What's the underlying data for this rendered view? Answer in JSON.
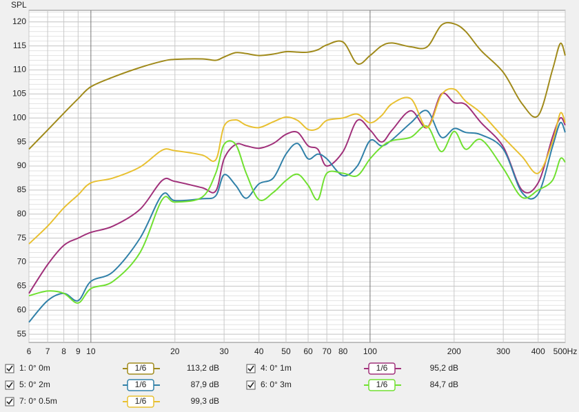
{
  "chart_data": {
    "type": "line",
    "y_label": "SPL",
    "xscale": "log",
    "grid": true,
    "xlim": [
      6,
      500
    ],
    "ylim": [
      53.3,
      122.4
    ],
    "xticks": [
      6,
      7,
      8,
      9,
      10,
      20,
      30,
      40,
      50,
      60,
      70,
      80,
      100,
      200,
      300,
      400,
      {
        "value": 500,
        "label": "500Hz"
      }
    ],
    "yticks": [
      55,
      60,
      65,
      70,
      75,
      80,
      85,
      90,
      95,
      100,
      105,
      110,
      115,
      120
    ],
    "x": [
      6,
      7,
      8,
      9,
      10,
      12,
      15,
      18,
      20,
      25,
      28,
      30,
      33,
      36,
      40,
      45,
      50,
      55,
      60,
      65,
      70,
      80,
      90,
      100,
      110,
      120,
      140,
      160,
      180,
      200,
      220,
      250,
      300,
      350,
      400,
      450,
      480,
      500
    ],
    "series": [
      {
        "name": "1: 0° 0m",
        "color": "#a08a1a",
        "smoothing": "1/6",
        "level": "113,2 dB",
        "values": [
          93.5,
          97.5,
          101,
          104,
          106.5,
          108.5,
          110.5,
          111.8,
          112.2,
          112.3,
          112,
          112.7,
          113.6,
          113.4,
          113,
          113.3,
          113.8,
          113.7,
          113.7,
          114.2,
          115.2,
          115.8,
          111.3,
          113,
          115,
          115.6,
          114.8,
          114.8,
          119.3,
          119.6,
          118,
          114,
          109.5,
          103,
          100.5,
          110,
          115.5,
          113
        ]
      },
      {
        "name": "4: 0° 1m",
        "color": "#a0307a",
        "smoothing": "1/6",
        "level": "95,2 dB",
        "values": [
          63.5,
          69.5,
          73.5,
          75,
          76.2,
          77.5,
          81,
          87,
          86.8,
          85.5,
          84.8,
          91.5,
          94.5,
          94.2,
          93.7,
          94.7,
          96.6,
          97,
          94.2,
          93.5,
          90,
          93,
          99.5,
          97.5,
          95,
          97.5,
          101.5,
          98,
          105,
          103.2,
          102.8,
          99,
          94,
          85,
          86.5,
          96,
          100,
          98.5
        ]
      },
      {
        "name": "5: 0° 2m",
        "color": "#3080a8",
        "smoothing": "1/6",
        "level": "87,9 dB",
        "values": [
          57.5,
          62,
          63.5,
          62,
          66,
          68,
          75,
          84,
          82.8,
          83.2,
          83.8,
          88.2,
          86,
          83.3,
          86.3,
          87.5,
          92.5,
          94.7,
          91.5,
          92.5,
          91.5,
          88,
          90,
          95.3,
          94.2,
          95.5,
          99,
          101.5,
          96,
          97.8,
          97,
          96.5,
          93.5,
          84.5,
          84.2,
          94,
          99,
          97
        ]
      },
      {
        "name": "6: 0° 3m",
        "color": "#70e030",
        "smoothing": "1/6",
        "level": "84,7 dB",
        "values": [
          63,
          64,
          63.5,
          61.5,
          64.5,
          66,
          72,
          83,
          82.5,
          83.5,
          88.5,
          94.5,
          94.5,
          88.5,
          83,
          84.5,
          87,
          88.3,
          86,
          83,
          88.5,
          88.5,
          88,
          91.5,
          94,
          95.3,
          96,
          98.3,
          93,
          97.2,
          93.5,
          95.5,
          89.5,
          83.5,
          85,
          87,
          91.5,
          90.8
        ]
      },
      {
        "name": "7: 0° 0.5m",
        "color": "#e8c030",
        "smoothing": "1/6",
        "level": "99,3 dB",
        "values": [
          73.8,
          77.5,
          81.3,
          84,
          86.5,
          87.5,
          89.8,
          93.3,
          93.2,
          92.3,
          91.3,
          98.3,
          99.6,
          98.5,
          98,
          99.2,
          100.2,
          99.5,
          97.6,
          97.8,
          99.5,
          100,
          100.8,
          99,
          100.5,
          103,
          104,
          98,
          104.8,
          106,
          103.5,
          101,
          96,
          92,
          88.5,
          95,
          101,
          99
        ]
      }
    ]
  }
}
